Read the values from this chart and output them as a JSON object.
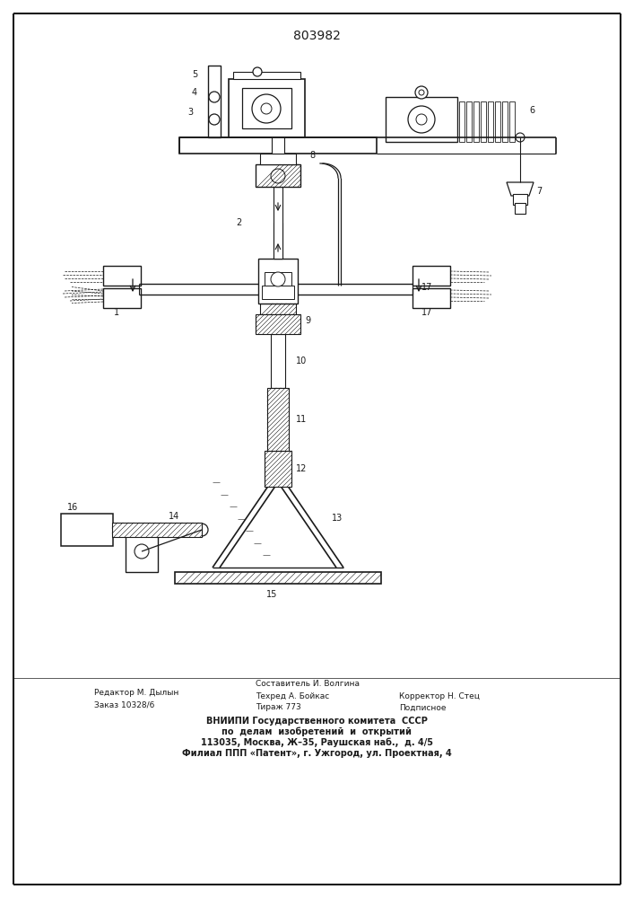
{
  "patent_number": "803982",
  "background_color": "#ffffff",
  "line_color": "#1a1a1a",
  "figsize": [
    7.07,
    10.0
  ],
  "dpi": 100,
  "footer_editor": "Редактор М. Дылын",
  "footer_order": "Заказ 10328/6",
  "footer_composer": "Составитель И. Волгина",
  "footer_tech": "Техред А. Бойкас",
  "footer_corrector": "Корректор Н. Стец",
  "footer_tirazh": "Тираж 773",
  "footer_podpisnoe": "Подписное",
  "footer_vniiipi": "ВНИИПИ Государственного комитета  СССР",
  "footer_line2": "по  делам  изобретений  и  открытий",
  "footer_line3": "113035, Москва, Ж–35, Раушская наб.,  д. 4/5",
  "footer_line4": "Филиал ППП «Патент», г. Ужгород, ул. Проектная, 4"
}
